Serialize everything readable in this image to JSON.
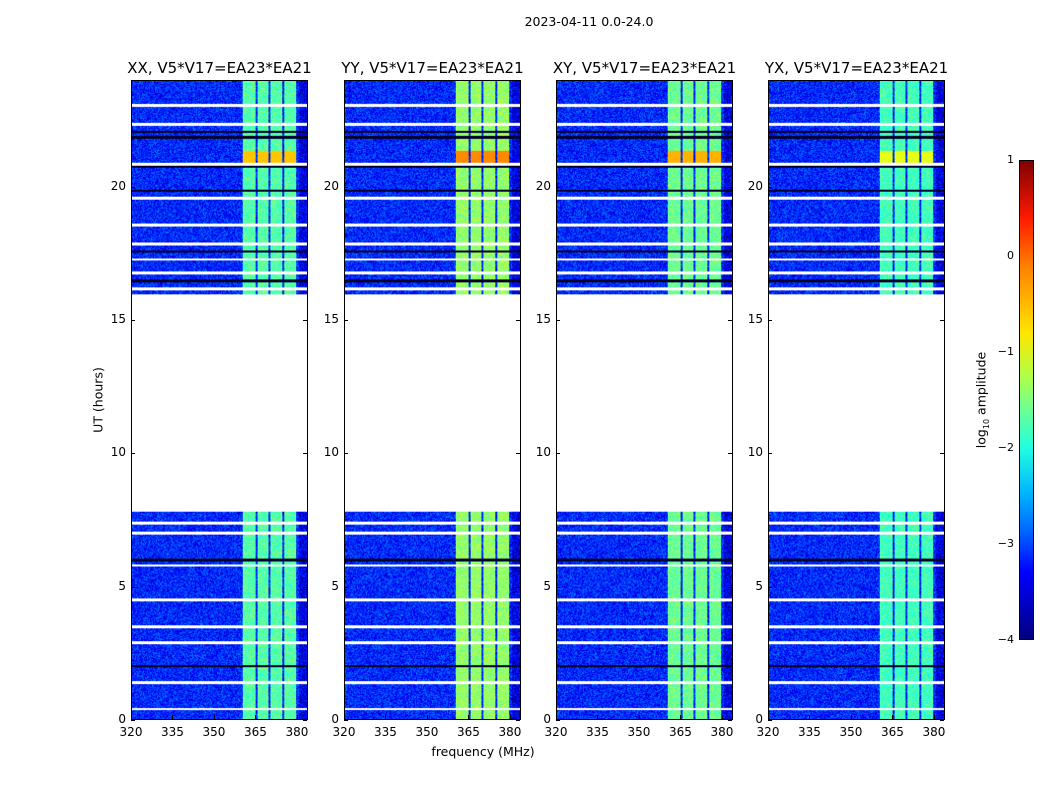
{
  "title": "2023-04-11 0.0-24.0",
  "chart_data": {
    "type": "heatmap",
    "title": "2023-04-11 0.0-24.0",
    "xlabel": "frequency (MHz)",
    "ylabel": "UT (hours)",
    "xlim": [
      320,
      384
    ],
    "ylim": [
      0,
      24
    ],
    "xticks": [
      320,
      335,
      350,
      365,
      380
    ],
    "yticks": [
      0,
      5,
      10,
      15,
      20
    ],
    "panels": [
      {
        "title": "XX, V5*V17=EA23*EA21",
        "band_level": -1.7,
        "band_peak": -0.6
      },
      {
        "title": "YY, V5*V17=EA23*EA21",
        "band_level": -1.4,
        "band_peak": -0.3
      },
      {
        "title": "XY, V5*V17=EA23*EA21",
        "band_level": -1.6,
        "band_peak": -0.5
      },
      {
        "title": "YX, V5*V17=EA23*EA21",
        "band_level": -1.8,
        "band_peak": -1.0
      }
    ],
    "data_time_ranges_hours": [
      [
        0.0,
        7.8
      ],
      [
        16.0,
        24.0
      ]
    ],
    "background_log10_amplitude": -3.2,
    "bright_subbands_mhz": [
      [
        360.4,
        365.1
      ],
      [
        365.8,
        369.8
      ],
      [
        370.5,
        374.8
      ],
      [
        375.5,
        379.8
      ]
    ],
    "flagged_rows_hours": [
      0.4,
      1.4,
      2.9,
      3.5,
      4.5,
      5.8,
      7.0,
      7.4,
      16.2,
      16.8,
      17.3,
      17.9,
      18.6,
      19.6,
      20.9,
      22.4,
      23.1
    ],
    "dark_rows_hours": [
      2.0,
      6.0,
      16.5,
      17.6,
      19.9,
      20.8,
      21.9,
      22.1
    ],
    "colorbar": {
      "label": "log10 amplitude",
      "label_main": "log",
      "label_sub": "10",
      "label_rest": " amplitude",
      "range": [
        -4,
        1
      ],
      "ticks": [
        "1",
        "0",
        "−1",
        "−2",
        "−3",
        "−4"
      ],
      "colormap": "jet"
    }
  }
}
